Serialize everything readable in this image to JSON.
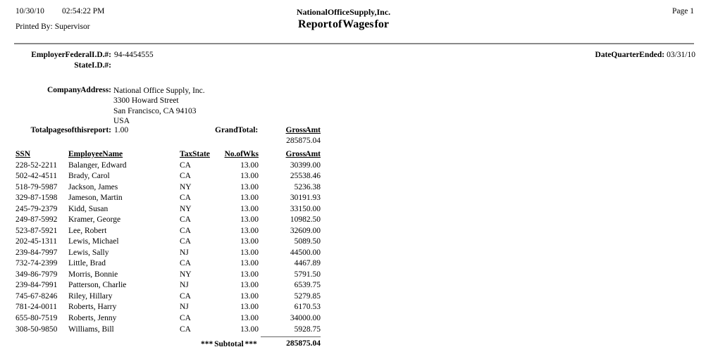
{
  "header": {
    "print_date": "10/30/10",
    "print_time": "02:54:22 PM",
    "printed_by_label": "Printed By:",
    "printed_by": "Supervisor",
    "company_name": "National Office Supply, Inc.",
    "report_title": "Report of Wages for",
    "page_label": "Page 1"
  },
  "info": {
    "federal_id_label": "Employer Federal I.D. #:",
    "federal_id": "94-4454555",
    "state_id_label": "State I.D. #:",
    "state_id": "",
    "quarter_ended_label": "Date Quarter Ended:",
    "quarter_ended": "03/31/10",
    "company_address_label": "Company Address:",
    "company_address_lines": [
      "National Office Supply, Inc.",
      "3300 Howard Street",
      "San Francisco, CA 94103",
      "USA"
    ],
    "total_pages_label": "Total pages of this report:",
    "total_pages": "1.00",
    "grand_total_label": "Grand Total:",
    "grand_total_column_label": "Gross Amt",
    "grand_total_value": "285875.04"
  },
  "table": {
    "headers": [
      "SSN",
      "Employee Name",
      "Tax State",
      "No. of Wks",
      "Gross Amt"
    ],
    "rows": [
      {
        "ssn": "228-52-2211",
        "name": "Balanger, Edward",
        "tax_state": "CA",
        "weeks": "13.00",
        "gross": "30399.00"
      },
      {
        "ssn": "502-42-4511",
        "name": "Brady, Carol",
        "tax_state": "CA",
        "weeks": "13.00",
        "gross": "25538.46"
      },
      {
        "ssn": "518-79-5987",
        "name": "Jackson, James",
        "tax_state": "NY",
        "weeks": "13.00",
        "gross": "5236.38"
      },
      {
        "ssn": "329-87-1598",
        "name": "Jameson, Martin",
        "tax_state": "CA",
        "weeks": "13.00",
        "gross": "30191.93"
      },
      {
        "ssn": "245-79-2379",
        "name": "Kidd, Susan",
        "tax_state": "NY",
        "weeks": "13.00",
        "gross": "33150.00"
      },
      {
        "ssn": "249-87-5992",
        "name": "Kramer, George",
        "tax_state": "CA",
        "weeks": "13.00",
        "gross": "10982.50"
      },
      {
        "ssn": "523-87-5921",
        "name": "Lee, Robert",
        "tax_state": "CA",
        "weeks": "13.00",
        "gross": "32609.00"
      },
      {
        "ssn": "202-45-1311",
        "name": "Lewis, Michael",
        "tax_state": "CA",
        "weeks": "13.00",
        "gross": "5089.50"
      },
      {
        "ssn": "239-84-7997",
        "name": "Lewis, Sally",
        "tax_state": "NJ",
        "weeks": "13.00",
        "gross": "44500.00"
      },
      {
        "ssn": "732-74-2399",
        "name": "Little, Brad",
        "tax_state": "CA",
        "weeks": "13.00",
        "gross": "4467.89"
      },
      {
        "ssn": "349-86-7979",
        "name": "Morris, Bonnie",
        "tax_state": "NY",
        "weeks": "13.00",
        "gross": "5791.50"
      },
      {
        "ssn": "239-84-7991",
        "name": "Patterson, Charlie",
        "tax_state": "NJ",
        "weeks": "13.00",
        "gross": "6539.75"
      },
      {
        "ssn": "745-67-8246",
        "name": "Riley, Hillary",
        "tax_state": "CA",
        "weeks": "13.00",
        "gross": "5279.85"
      },
      {
        "ssn": "781-24-0011",
        "name": "Roberts, Harry",
        "tax_state": "NJ",
        "weeks": "13.00",
        "gross": "6170.53"
      },
      {
        "ssn": "655-80-7519",
        "name": "Roberts, Jenny",
        "tax_state": "CA",
        "weeks": "13.00",
        "gross": "34000.00"
      },
      {
        "ssn": "308-50-9850",
        "name": "Williams, Bill",
        "tax_state": "CA",
        "weeks": "13.00",
        "gross": "5928.75"
      }
    ],
    "subtotal_label": "*** Subtotal ***",
    "subtotal_value": "285875.04"
  }
}
